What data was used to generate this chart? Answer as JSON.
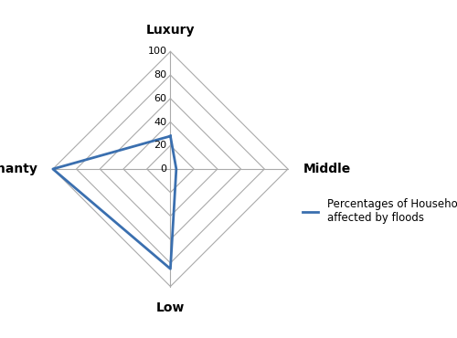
{
  "categories": [
    "Luxury",
    "Middle",
    "Low",
    "Shanty"
  ],
  "values": [
    28,
    5,
    85,
    100
  ],
  "max_val": 100,
  "tick_values": [
    0,
    20,
    40,
    60,
    80,
    100
  ],
  "line_color": "#3a6faf",
  "line_width": 2.0,
  "grid_color": "#aaaaaa",
  "grid_linewidth": 0.8,
  "legend_label": "Percentages of Households\naffected by floods",
  "label_fontsize": 10,
  "tick_fontsize": 8,
  "legend_fontsize": 8.5,
  "bg_color": "#ffffff",
  "figsize": [
    5.0,
    3.7
  ],
  "dpi": 100
}
